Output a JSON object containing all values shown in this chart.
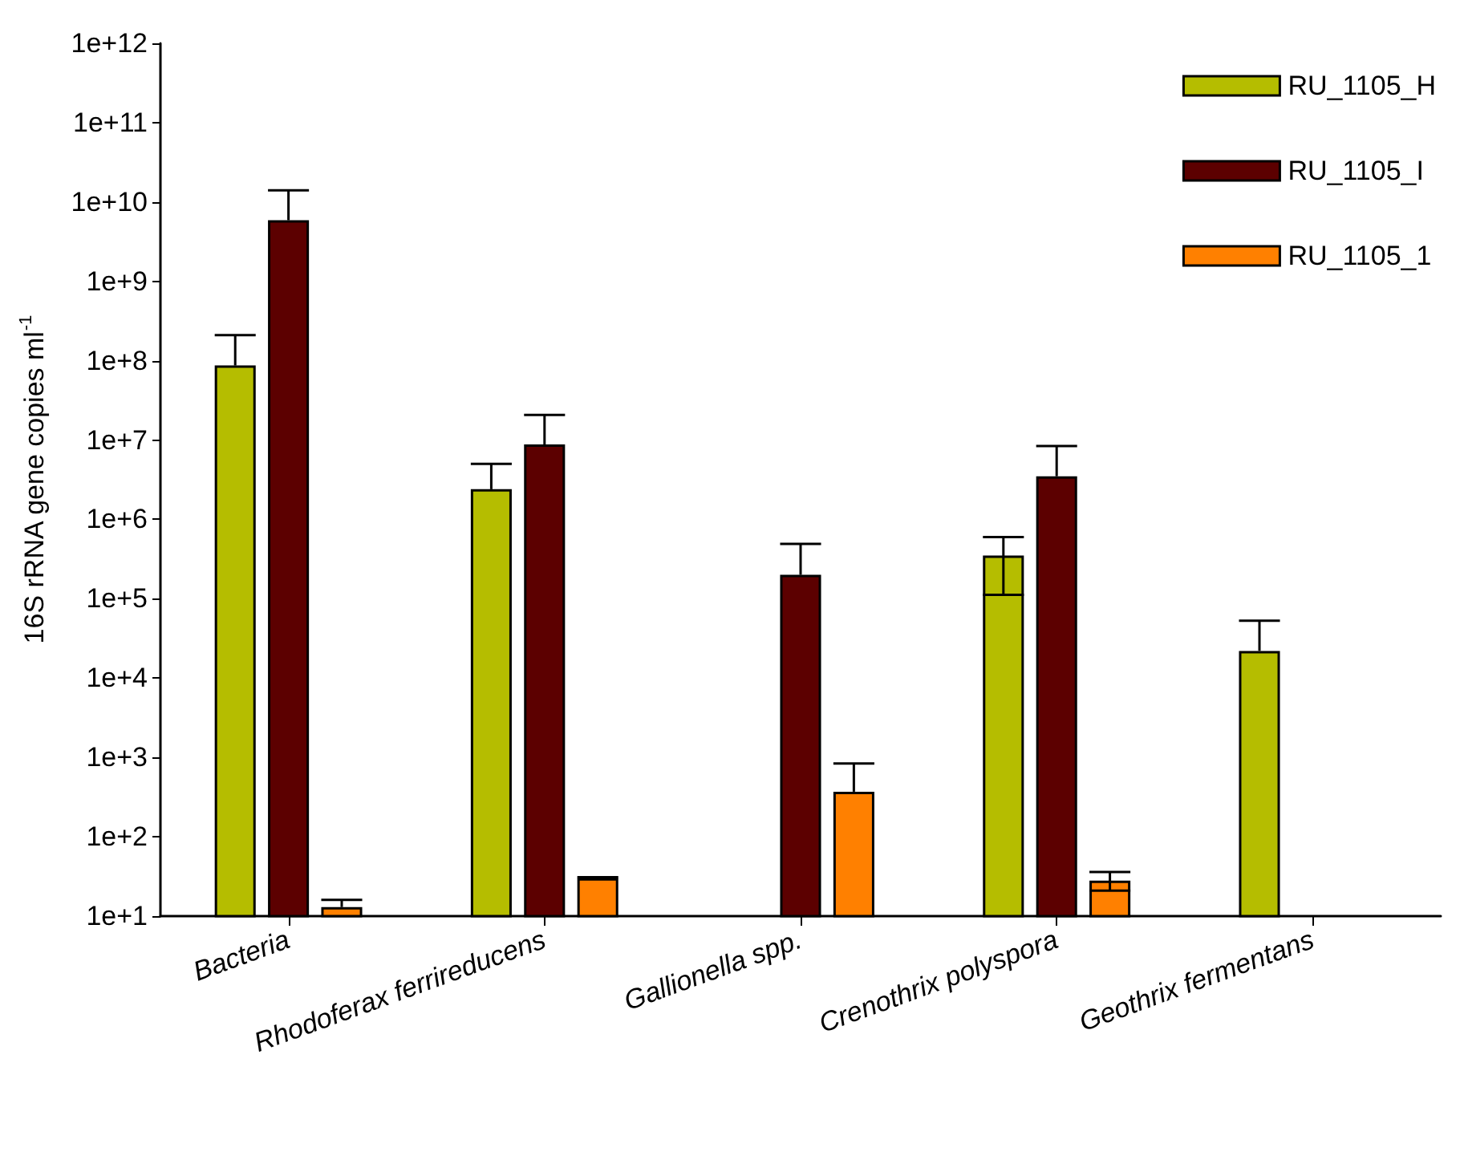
{
  "chart_data": {
    "type": "bar",
    "ylabel": "16S rRNA gene copies ml$^{-1}$",
    "log": true,
    "categories": [
      "Bacteria",
      "Rhodoferax ferrireducens",
      "Gallionella spp.",
      "Crenothrix polyspora",
      "Geothrix fermentans"
    ],
    "series": [
      {
        "name": "RU_1105_H",
        "color": "#b5bd00",
        "values": [
          87000000,
          2400000,
          null,
          350000,
          22000
        ],
        "errors": [
          [
            87000000,
            210000000
          ],
          [
            2400000,
            5000000
          ],
          null,
          [
            112000,
            600000
          ],
          [
            22000,
            53000
          ]
        ]
      },
      {
        "name": "RU_1105_I",
        "color": "#5c0000",
        "values": [
          5900000000,
          8800000,
          200000,
          3500000,
          null
        ],
        "errors": [
          [
            5900000000,
            14000000000
          ],
          [
            8800000,
            20700000
          ],
          [
            200000,
            490000
          ],
          [
            3500000,
            8400000
          ],
          null
        ]
      },
      {
        "name": "RU_1105_1",
        "color": "#ff8000",
        "values": [
          13,
          30,
          370,
          28,
          null
        ],
        "errors": [
          [
            13,
            16
          ],
          [
            30,
            31
          ],
          [
            370,
            840
          ],
          [
            21,
            36
          ],
          null
        ]
      }
    ],
    "ylim": [
      10,
      1000000000000
    ],
    "yticks": [
      {
        "value": 10,
        "label": "1e+1"
      },
      {
        "value": 100,
        "label": "1e+2"
      },
      {
        "value": 1000,
        "label": "1e+3"
      },
      {
        "value": 10000,
        "label": "1e+4"
      },
      {
        "value": 100000,
        "label": "1e+5"
      },
      {
        "value": 1000000,
        "label": "1e+6"
      },
      {
        "value": 10000000,
        "label": "1e+7"
      },
      {
        "value": 100000000,
        "label": "1e+8"
      },
      {
        "value": 1000000000,
        "label": "1e+9"
      },
      {
        "value": 10000000000,
        "label": "1e+10"
      },
      {
        "value": 100000000000,
        "label": "1e+11"
      },
      {
        "value": 1000000000000,
        "label": "1e+12"
      }
    ],
    "grid": false,
    "legend": "top right"
  }
}
